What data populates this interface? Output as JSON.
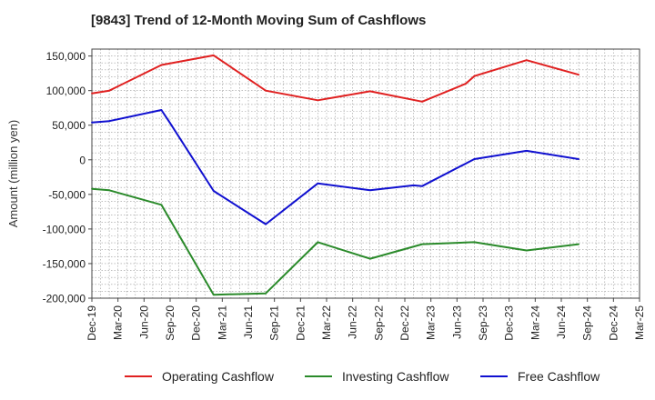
{
  "chart_data": {
    "type": "line",
    "title": "[9843]  Trend of 12-Month Moving Sum of Cashflows",
    "xlabel": "",
    "ylabel": "Amount (million yen)",
    "ylim": [
      -200000,
      160000
    ],
    "y_ticks": [
      -200000,
      -150000,
      -100000,
      -50000,
      0,
      50000,
      100000,
      150000
    ],
    "x_ticks": [
      "Dec-19",
      "Mar-20",
      "Jun-20",
      "Sep-20",
      "Dec-20",
      "Mar-21",
      "Jun-21",
      "Sep-21",
      "Dec-21",
      "Mar-22",
      "Jun-22",
      "Sep-22",
      "Dec-22",
      "Mar-23",
      "Jun-23",
      "Sep-23",
      "Dec-23",
      "Mar-24",
      "Jun-24",
      "Sep-24",
      "Dec-24",
      "Mar-25"
    ],
    "grid": true,
    "legend_position": "bottom",
    "series": [
      {
        "name": "Operating Cashflow",
        "color": "#e02020",
        "points": [
          [
            "Dec-19",
            96000
          ],
          [
            "Feb-20",
            100000
          ],
          [
            "Aug-20",
            137000
          ],
          [
            "Feb-21",
            151000
          ],
          [
            "Aug-21",
            100000
          ],
          [
            "Feb-22",
            86000
          ],
          [
            "Aug-22",
            99000
          ],
          [
            "Feb-23",
            84000
          ],
          [
            "Jul-23",
            110000
          ],
          [
            "Aug-23",
            121000
          ],
          [
            "Feb-24",
            144000
          ],
          [
            "Aug-24",
            123000
          ]
        ]
      },
      {
        "name": "Investing Cashflow",
        "color": "#2a8a2a",
        "points": [
          [
            "Dec-19",
            -42000
          ],
          [
            "Feb-20",
            -44000
          ],
          [
            "Aug-20",
            -65000
          ],
          [
            "Feb-21",
            -195000
          ],
          [
            "Aug-21",
            -193000
          ],
          [
            "Feb-22",
            -119000
          ],
          [
            "Aug-22",
            -143000
          ],
          [
            "Feb-23",
            -122000
          ],
          [
            "Aug-23",
            -119000
          ],
          [
            "Feb-24",
            -131000
          ],
          [
            "Aug-24",
            -122000
          ]
        ]
      },
      {
        "name": "Free Cashflow",
        "color": "#1010d0",
        "points": [
          [
            "Dec-19",
            54000
          ],
          [
            "Feb-20",
            56000
          ],
          [
            "Aug-20",
            72000
          ],
          [
            "Sep-20",
            53000
          ],
          [
            "Feb-21",
            -45000
          ],
          [
            "Aug-21",
            -93000
          ],
          [
            "Feb-22",
            -34000
          ],
          [
            "Aug-22",
            -44000
          ],
          [
            "Jan-23",
            -37000
          ],
          [
            "Feb-23",
            -38000
          ],
          [
            "Aug-23",
            1000
          ],
          [
            "Feb-24",
            13000
          ],
          [
            "Aug-24",
            1000
          ]
        ]
      }
    ]
  }
}
